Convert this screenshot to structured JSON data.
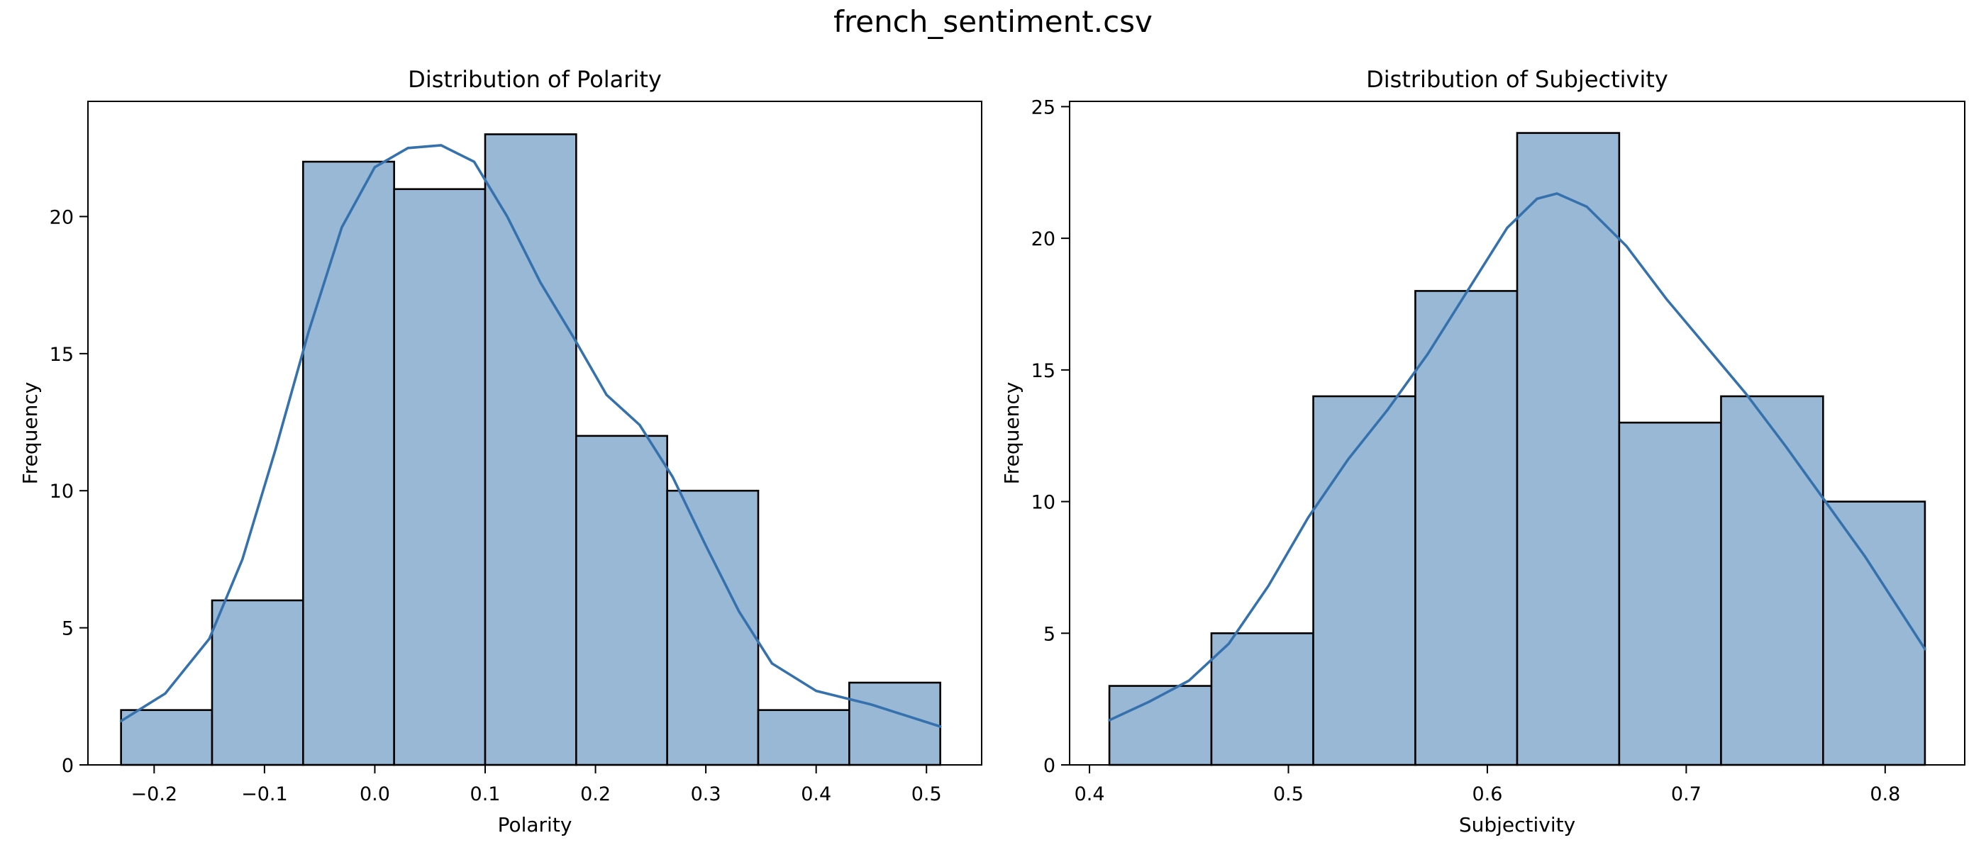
{
  "figure": {
    "suptitle": "french_sentiment.csv"
  },
  "colors": {
    "bar_fill": "#98b8d6",
    "bar_edge": "#000000",
    "kde_line": "#3572ad",
    "axes_edge": "#000000"
  },
  "chart_data": [
    {
      "type": "bar",
      "title": "Distribution of Polarity",
      "xlabel": "Polarity",
      "ylabel": "Frequency",
      "xlim": [
        -0.26,
        0.55
      ],
      "ylim": [
        0,
        24.2
      ],
      "xticks": [
        -0.2,
        -0.1,
        0.0,
        0.1,
        0.2,
        0.3,
        0.4,
        0.5
      ],
      "xtick_labels": [
        "−0.2",
        "−0.1",
        "0.0",
        "0.1",
        "0.2",
        "0.3",
        "0.4",
        "0.5"
      ],
      "yticks": [
        0,
        5,
        10,
        15,
        20
      ],
      "bin_edges": [
        -0.23,
        -0.1475,
        -0.065,
        0.0175,
        0.1,
        0.1825,
        0.265,
        0.3475,
        0.43,
        0.5125
      ],
      "values": [
        2,
        6,
        22,
        21,
        23,
        12,
        10,
        2,
        3
      ],
      "kde": {
        "x": [
          -0.23,
          -0.19,
          -0.15,
          -0.12,
          -0.09,
          -0.06,
          -0.03,
          0.0,
          0.03,
          0.06,
          0.09,
          0.12,
          0.15,
          0.18,
          0.21,
          0.24,
          0.27,
          0.3,
          0.33,
          0.36,
          0.4,
          0.45,
          0.5125
        ],
        "y": [
          1.6,
          2.6,
          4.6,
          7.5,
          11.5,
          15.8,
          19.6,
          21.8,
          22.5,
          22.6,
          22.0,
          20.0,
          17.6,
          15.6,
          13.5,
          12.4,
          10.5,
          8.0,
          5.6,
          3.7,
          2.7,
          2.2,
          1.4
        ]
      },
      "grid": false,
      "legend": "none"
    },
    {
      "type": "bar",
      "title": "Distribution of Subjectivity",
      "xlabel": "Subjectivity",
      "ylabel": "Frequency",
      "xlim": [
        0.39,
        0.84
      ],
      "ylim": [
        0,
        25.2
      ],
      "xticks": [
        0.4,
        0.5,
        0.6,
        0.7,
        0.8
      ],
      "xtick_labels": [
        "0.4",
        "0.5",
        "0.6",
        "0.7",
        "0.8"
      ],
      "yticks": [
        0,
        5,
        10,
        15,
        20,
        25
      ],
      "bin_edges": [
        0.41,
        0.4613,
        0.5125,
        0.5638,
        0.615,
        0.6663,
        0.7175,
        0.7688,
        0.82
      ],
      "values": [
        3,
        5,
        14,
        18,
        24,
        13,
        14,
        10
      ],
      "kde": {
        "x": [
          0.41,
          0.43,
          0.45,
          0.47,
          0.49,
          0.51,
          0.53,
          0.55,
          0.57,
          0.59,
          0.61,
          0.625,
          0.635,
          0.65,
          0.67,
          0.69,
          0.71,
          0.73,
          0.75,
          0.77,
          0.79,
          0.82
        ],
        "y": [
          1.7,
          2.4,
          3.2,
          4.6,
          6.8,
          9.4,
          11.6,
          13.5,
          15.6,
          18.0,
          20.4,
          21.5,
          21.7,
          21.2,
          19.7,
          17.7,
          15.9,
          14.1,
          12.1,
          10.0,
          7.9,
          4.4
        ]
      },
      "grid": false,
      "legend": "none"
    }
  ]
}
